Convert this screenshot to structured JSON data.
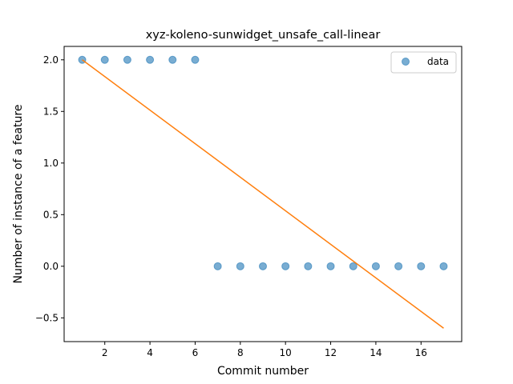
{
  "chart_data": {
    "type": "scatter",
    "title": "xyz-koleno-sunwidget_unsafe_call-linear",
    "xlabel": "Commit number",
    "ylabel": "Number of instance of a feature",
    "xlim": [
      0.2,
      17.8
    ],
    "ylim": [
      -0.73,
      2.13
    ],
    "xticks": [
      2,
      4,
      6,
      8,
      10,
      12,
      14,
      16
    ],
    "xtick_labels": [
      "2",
      "4",
      "6",
      "8",
      "10",
      "12",
      "14",
      "16"
    ],
    "yticks": [
      -0.5,
      0.0,
      0.5,
      1.0,
      1.5,
      2.0
    ],
    "ytick_labels": [
      "−0.5",
      "0.0",
      "0.5",
      "1.0",
      "1.5",
      "2.0"
    ],
    "grid": false,
    "legend": {
      "position": "top-right",
      "entries": [
        "data"
      ]
    },
    "series": [
      {
        "name": "data",
        "type": "scatter",
        "color": "#1f77b4",
        "x": [
          1,
          2,
          3,
          4,
          5,
          6,
          7,
          8,
          9,
          10,
          11,
          12,
          13,
          14,
          15,
          16,
          17
        ],
        "y": [
          2,
          2,
          2,
          2,
          2,
          2,
          0,
          0,
          0,
          0,
          0,
          0,
          0,
          0,
          0,
          0,
          0
        ]
      },
      {
        "type": "line",
        "color": "#ff7f0e",
        "x": [
          1,
          17
        ],
        "y": [
          2.0,
          -0.6
        ]
      }
    ]
  }
}
